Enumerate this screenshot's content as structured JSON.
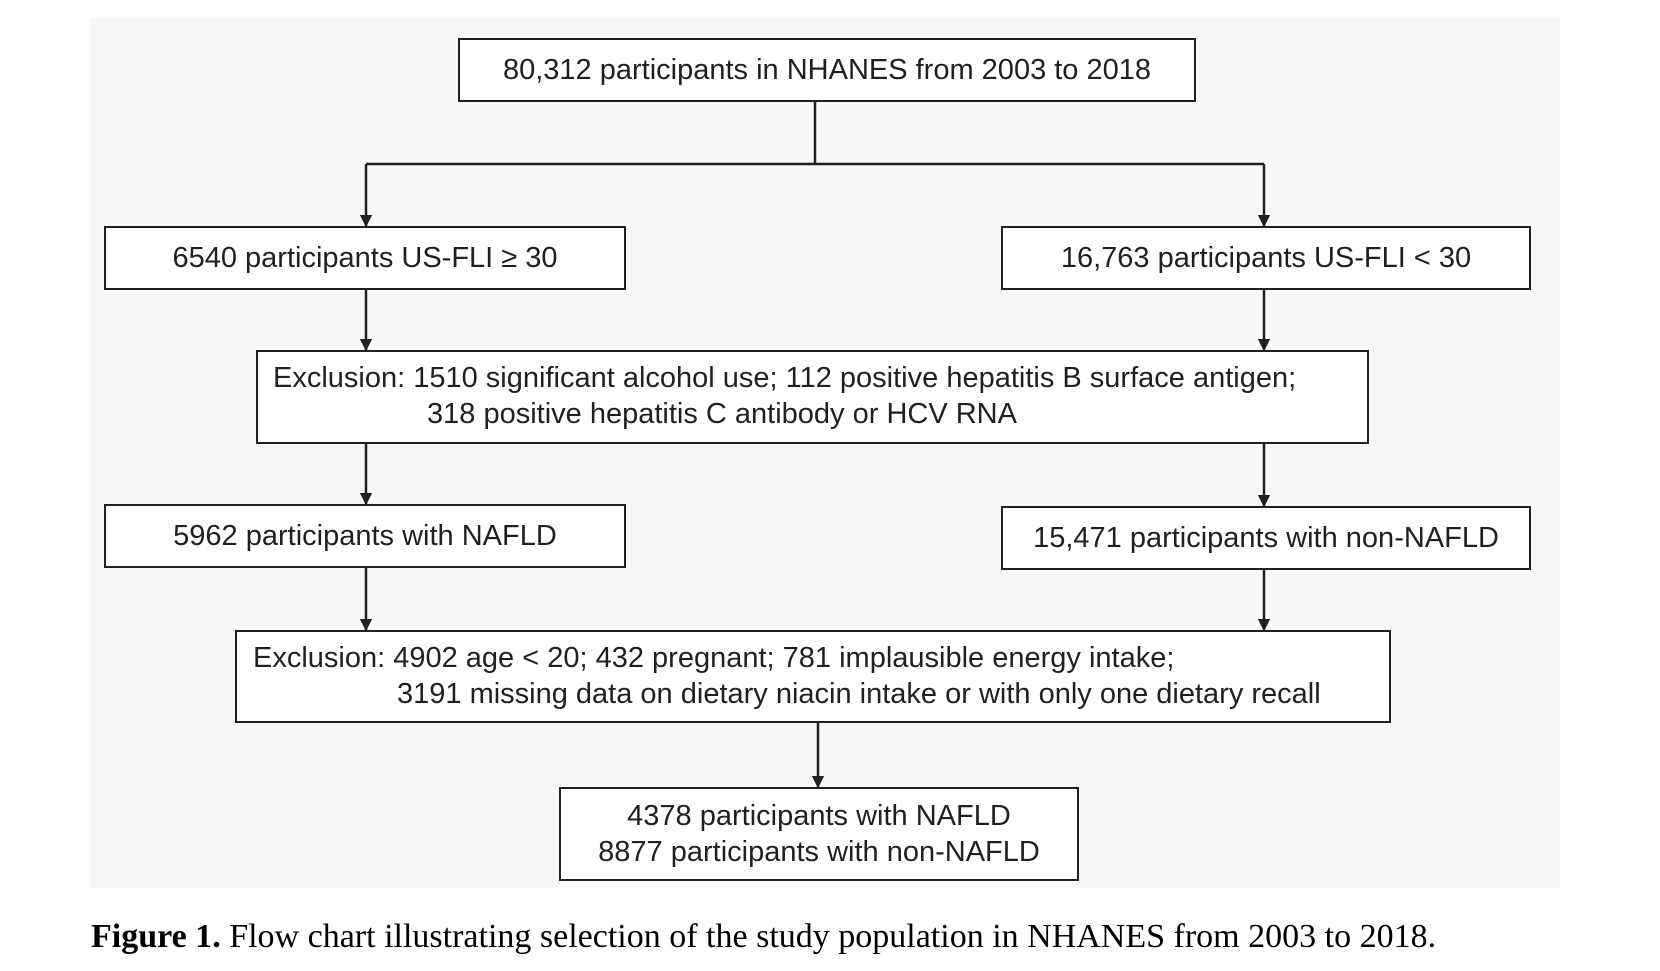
{
  "figure": {
    "nodes": {
      "total": "80,312 participants in NHANES from 2003 to 2018",
      "fli_high": "6540 participants US-FLI ≥ 30",
      "fli_low": "16,763 participants US-FLI < 30",
      "exclusion_1": {
        "line1": "Exclusion: 1510 significant alcohol use; 112 positive hepatitis B surface antigen;",
        "line2": "318 positive hepatitis C antibody or HCV RNA"
      },
      "nafld": "5962 participants with NAFLD",
      "non_nafld": "15,471 participants with non-NAFLD",
      "exclusion_2": {
        "line1": "Exclusion: 4902 age < 20; 432 pregnant; 781 implausible energy intake;",
        "line2": "3191 missing data on dietary niacin intake or with only one dietary recall"
      },
      "final": {
        "line1": "4378 participants with NAFLD",
        "line2": "8877 participants with non-NAFLD"
      }
    },
    "edges": [
      {
        "from": "total",
        "to": "fli_high"
      },
      {
        "from": "total",
        "to": "fli_low"
      },
      {
        "from": "fli_high",
        "to": "exclusion_1"
      },
      {
        "from": "fli_low",
        "to": "exclusion_1"
      },
      {
        "from": "exclusion_1",
        "to": "nafld"
      },
      {
        "from": "exclusion_1",
        "to": "non_nafld"
      },
      {
        "from": "nafld",
        "to": "exclusion_2"
      },
      {
        "from": "non_nafld",
        "to": "exclusion_2"
      },
      {
        "from": "exclusion_2",
        "to": "final"
      }
    ]
  },
  "caption": {
    "label": "Figure 1.",
    "text": " Flow chart illustrating selection of the study population in NHANES from 2003 to 2018."
  }
}
